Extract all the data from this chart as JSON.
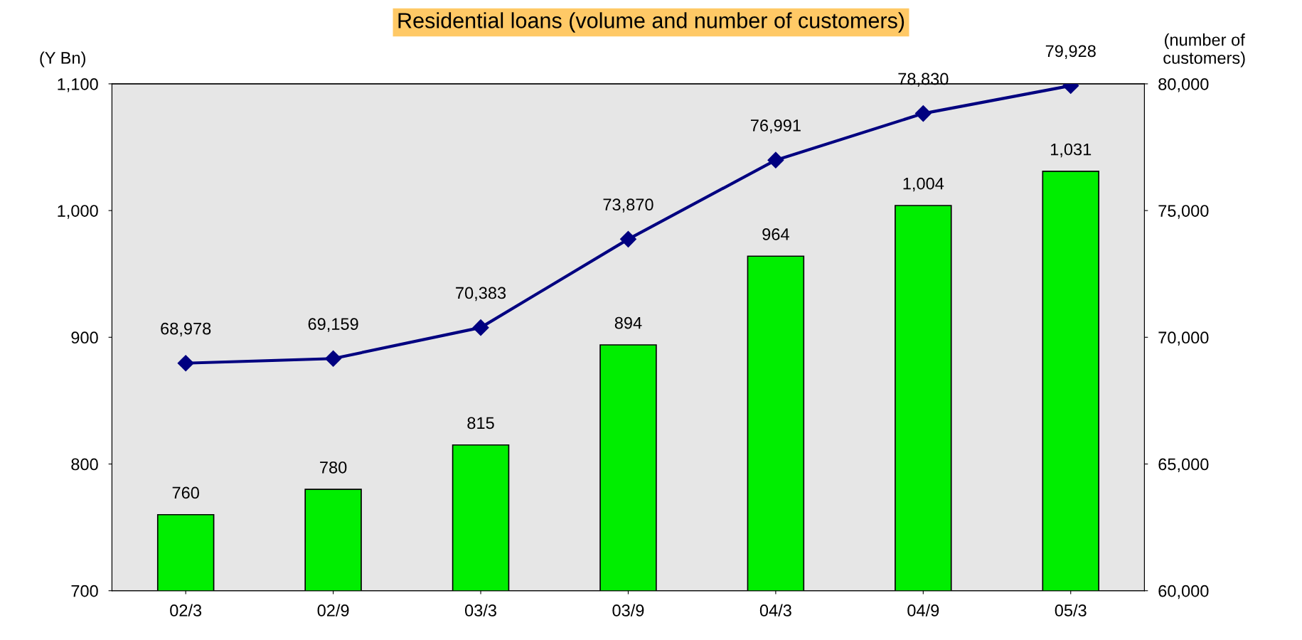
{
  "chart_data": {
    "type": "bar",
    "title": "Residential loans (volume and number of customers)",
    "ylabel": "(Y Bn)",
    "y2label": "(number of\ncustomers)",
    "categories": [
      "02/3",
      "02/9",
      "03/3",
      "03/9",
      "04/3",
      "04/9",
      "05/3"
    ],
    "series": [
      {
        "color": "#00ee00",
        "values": [
          760,
          780,
          815,
          894,
          964,
          1004,
          1031
        ],
        "value_labels": [
          "760",
          "780",
          "815",
          "894",
          "964",
          "1,004",
          "1,031"
        ]
      },
      {
        "type": "line",
        "axis": "y2",
        "color": "#000080",
        "marker": "diamond",
        "values": [
          68978,
          69159,
          70383,
          73870,
          76991,
          78830,
          79928
        ],
        "value_labels": [
          "68,978",
          "69,159",
          "70,383",
          "73,870",
          "76,991",
          "78,830",
          "79,928"
        ]
      }
    ],
    "ylim": [
      700,
      1100
    ],
    "yticks": [
      700,
      800,
      900,
      {
        "value": 1000,
        "label": "1,000"
      },
      {
        "value": 1100,
        "label": "1,100"
      }
    ],
    "y2lim": [
      60000,
      80000
    ],
    "y2ticks": [
      {
        "value": 60000,
        "label": "60,000"
      },
      {
        "value": 65000,
        "label": "65,000"
      },
      {
        "value": 70000,
        "label": "70,000"
      },
      {
        "value": 75000,
        "label": "75,000"
      },
      {
        "value": 80000,
        "label": "80,000"
      }
    ],
    "grid": false,
    "legend": false
  }
}
